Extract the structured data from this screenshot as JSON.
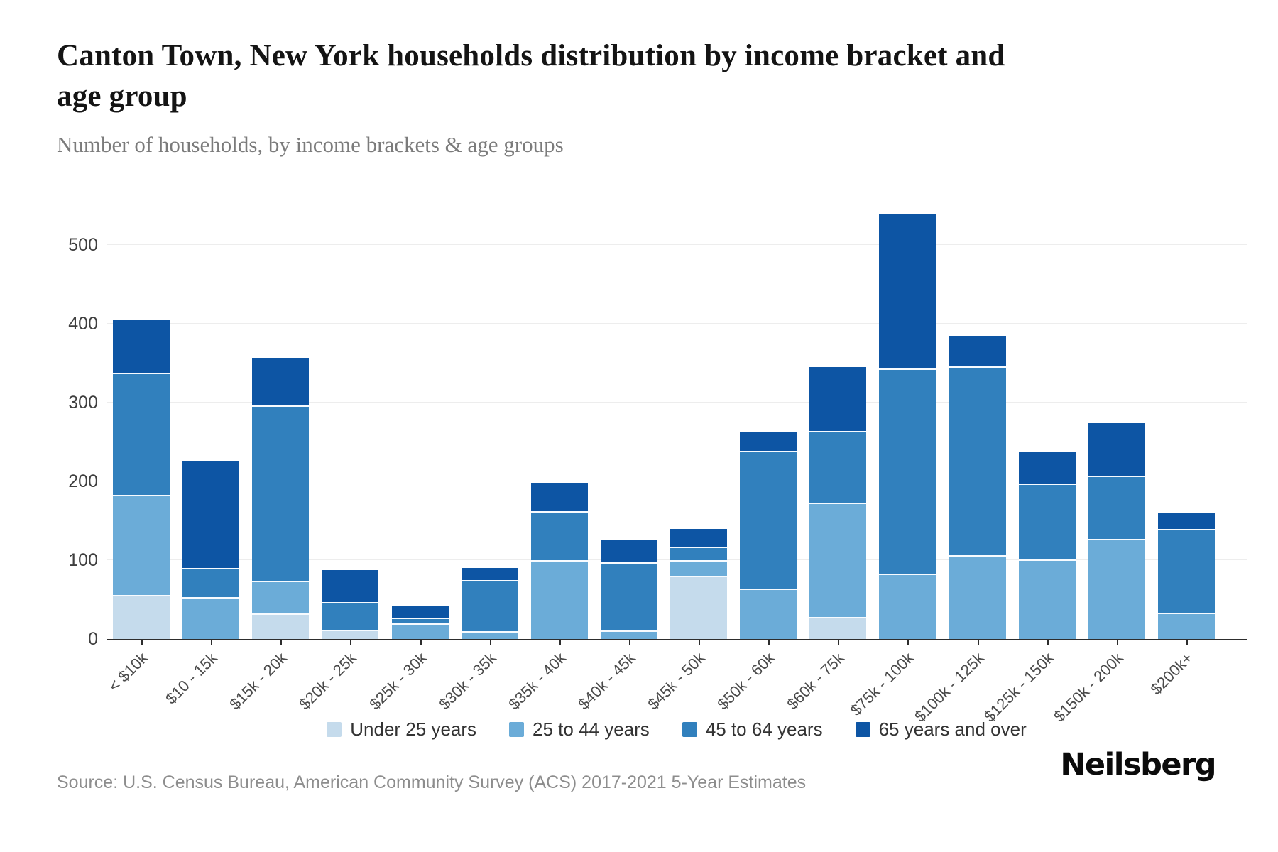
{
  "title": "Canton Town, New York households distribution by income bracket and age group",
  "subtitle": "Number of households, by income brackets & age groups",
  "source": "Source: U.S. Census Bureau, American Community Survey (ACS) 2017-2021 5-Year Estimates",
  "brand": "Neilsberg",
  "chart_data": {
    "type": "bar",
    "stacked": true,
    "title": "Canton Town, New York households distribution by income bracket and age group",
    "xlabel": "",
    "ylabel": "",
    "categories": [
      "< $10k",
      "$10 - 15k",
      "$15k - 20k",
      "$20k - 25k",
      "$25k - 30k",
      "$30k - 35k",
      "$35k - 40k",
      "$40k - 45k",
      "$45k - 50k",
      "$50k - 60k",
      "$60k - 75k",
      "$75k - 100k",
      "$100k - 125k",
      "$125k - 150k",
      "$150k - 200k",
      "$200k+"
    ],
    "series": [
      {
        "name": "Under 25 years",
        "color": "#c5dbec",
        "values": [
          56,
          0,
          32,
          12,
          0,
          0,
          0,
          0,
          80,
          0,
          28,
          0,
          0,
          0,
          0,
          0
        ]
      },
      {
        "name": "25 to 44 years",
        "color": "#6bacd8",
        "values": [
          127,
          53,
          42,
          0,
          20,
          10,
          100,
          11,
          20,
          64,
          145,
          83,
          106,
          101,
          127,
          33
        ]
      },
      {
        "name": "45 to 64 years",
        "color": "#3180bd",
        "values": [
          155,
          37,
          222,
          35,
          7,
          65,
          62,
          86,
          17,
          175,
          91,
          260,
          240,
          96,
          80,
          107
        ]
      },
      {
        "name": "65 years and over",
        "color": "#0d55a4",
        "values": [
          67,
          135,
          61,
          40,
          15,
          15,
          36,
          29,
          23,
          23,
          81,
          197,
          39,
          40,
          67,
          20
        ]
      }
    ],
    "stack_totals": [
      405,
      225,
      357,
      87,
      42,
      90,
      198,
      126,
      140,
      262,
      345,
      540,
      385,
      237,
      274,
      160
    ],
    "yticks": [
      0,
      100,
      200,
      300,
      400,
      500
    ],
    "ylim": [
      0,
      558
    ],
    "grid": true,
    "legend_position": "bottom"
  }
}
